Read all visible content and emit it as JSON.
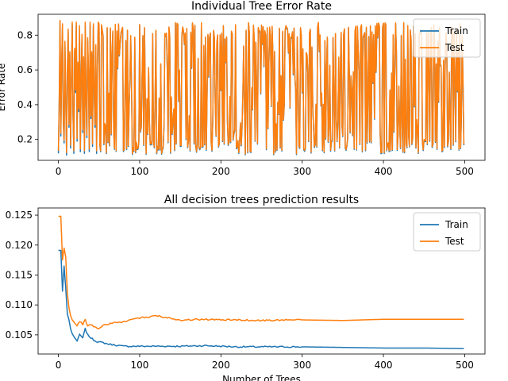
{
  "chart_data": [
    {
      "type": "line",
      "title": "Individual Tree Error Rate",
      "xlabel": "",
      "ylabel": "Error Rate",
      "xlim": [
        -25,
        525
      ],
      "ylim": [
        0.08,
        0.92
      ],
      "xticks": [
        0,
        100,
        200,
        300,
        400,
        500
      ],
      "yticks": [
        0.2,
        0.4,
        0.6,
        0.8
      ],
      "legend": "top-right",
      "grid": false,
      "x_range": [
        0,
        499
      ],
      "noise_note": "per-tree error alternates rapidly between ~0.11 and ~0.87",
      "series": [
        {
          "name": "Train",
          "color": "#1f77b4",
          "values": [
            0.12,
            0.41,
            0.88,
            0.22,
            0.62,
            0.85,
            0.3,
            0.18,
            0.75,
            0.44,
            0.11,
            0.58,
            0.82,
            0.27,
            0.69,
            0.15,
            0.52,
            0.86,
            0.33,
            0.12,
            0.71,
            0.47,
            0.86,
            0.19,
            0.63,
            0.36,
            0.84,
            0.13,
            0.55,
            0.79,
            0.24,
            0.66,
            0.12,
            0.86,
            0.41,
            0.21,
            0.77,
            0.58,
            0.13,
            0.86,
            0.32,
            0.69,
            0.16,
            0.85,
            0.49,
            0.27,
            0.73,
            0.12,
            0.61,
            0.86
          ]
        },
        {
          "name": "Test",
          "color": "#ff7f0e",
          "values": [
            0.13,
            0.42,
            0.88,
            0.23,
            0.63,
            0.86,
            0.31,
            0.19,
            0.76,
            0.45,
            0.12,
            0.59,
            0.83,
            0.28,
            0.7,
            0.16,
            0.53,
            0.87,
            0.34,
            0.13,
            0.72,
            0.48,
            0.87,
            0.2,
            0.64,
            0.37,
            0.85,
            0.14,
            0.56,
            0.8,
            0.25,
            0.67,
            0.13,
            0.87,
            0.42,
            0.22,
            0.78,
            0.59,
            0.14,
            0.87,
            0.33,
            0.7,
            0.17,
            0.86,
            0.5,
            0.28,
            0.74,
            0.13,
            0.62,
            0.87
          ]
        }
      ]
    },
    {
      "type": "line",
      "title": "All decision trees prediction results",
      "xlabel": "Number of Trees",
      "ylabel": "",
      "xlim": [
        -25,
        525
      ],
      "ylim": [
        0.1018,
        0.1262
      ],
      "xticks": [
        0,
        100,
        200,
        300,
        400,
        500
      ],
      "yticks": [
        0.105,
        0.11,
        0.115,
        0.12,
        0.125
      ],
      "ytick_labels": [
        "0.105",
        "0.110",
        "0.115",
        "0.120",
        "0.125"
      ],
      "legend": "top-right",
      "grid": false,
      "series": [
        {
          "name": "Train",
          "color": "#1f77b4",
          "x": [
            0,
            3,
            5,
            7,
            9,
            11,
            13,
            15,
            17,
            20,
            23,
            26,
            30,
            33,
            36,
            40,
            45,
            50,
            55,
            60,
            70,
            80,
            90,
            100,
            120,
            150,
            180,
            200,
            220,
            250,
            280,
            300,
            350,
            400,
            450,
            499
          ],
          "values": [
            0.1191,
            0.1191,
            0.1123,
            0.1165,
            0.1128,
            0.1085,
            0.1075,
            0.106,
            0.1052,
            0.1045,
            0.104,
            0.105,
            0.1045,
            0.106,
            0.105,
            0.1045,
            0.104,
            0.1038,
            0.1037,
            0.1035,
            0.1033,
            0.1031,
            0.1031,
            0.1031,
            0.1031,
            0.1031,
            0.1032,
            0.1031,
            0.103,
            0.103,
            0.103,
            0.103,
            0.1029,
            0.1028,
            0.1028,
            0.1027
          ]
        },
        {
          "name": "Test",
          "color": "#ff7f0e",
          "x": [
            0,
            3,
            5,
            7,
            9,
            11,
            13,
            15,
            17,
            20,
            23,
            26,
            30,
            33,
            36,
            40,
            45,
            50,
            55,
            60,
            70,
            80,
            90,
            100,
            110,
            120,
            150,
            180,
            200,
            220,
            250,
            280,
            300,
            350,
            400,
            450,
            499
          ],
          "values": [
            0.1248,
            0.1248,
            0.1175,
            0.1195,
            0.118,
            0.112,
            0.1095,
            0.1082,
            0.1075,
            0.107,
            0.1066,
            0.1072,
            0.1068,
            0.1075,
            0.1065,
            0.1067,
            0.1063,
            0.106,
            0.1066,
            0.1068,
            0.107,
            0.1072,
            0.1075,
            0.1078,
            0.108,
            0.1082,
            0.1075,
            0.1076,
            0.1075,
            0.1075,
            0.1074,
            0.1075,
            0.1075,
            0.1074,
            0.1076,
            0.1076,
            0.1076
          ]
        }
      ]
    }
  ]
}
